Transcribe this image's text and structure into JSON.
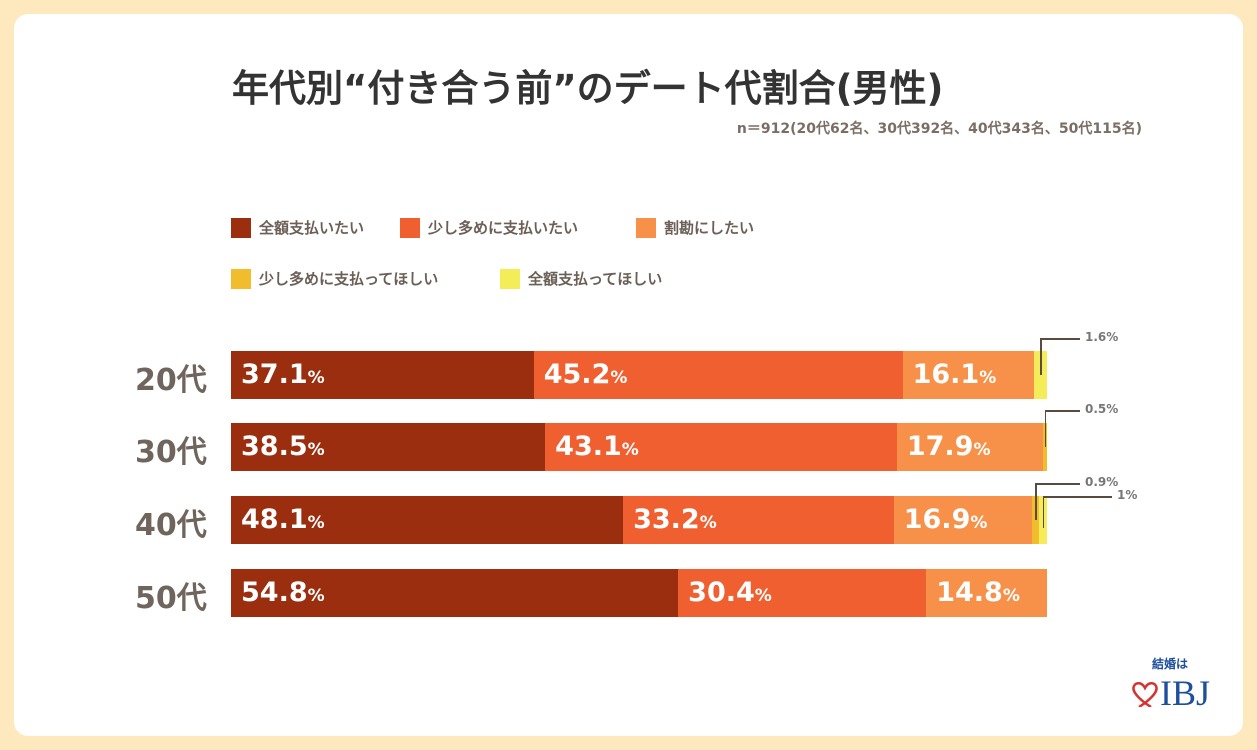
{
  "title": "年代別“付き合う前”のデート代割合(男性)",
  "subtitle": "n＝912(20代62名、30代392名、40代343名、50代115名)",
  "logo": {
    "tagline": "結婚は",
    "brand": "IBJ",
    "icon": "heart-icon"
  },
  "chart_data": {
    "type": "bar",
    "orientation": "horizontal",
    "stacked": true,
    "normalized": true,
    "title": "年代別“付き合う前”のデート代割合(男性)",
    "categories": [
      "20代",
      "30代",
      "40代",
      "50代"
    ],
    "legend_position": "top",
    "unit": "%",
    "series": [
      {
        "name": "全額支払いたい",
        "color": "#9a2e0e",
        "values": [
          37.1,
          38.5,
          48.1,
          54.8
        ]
      },
      {
        "name": "少し多めに支払いたい",
        "color": "#f05f30",
        "values": [
          45.2,
          43.1,
          33.2,
          30.4
        ]
      },
      {
        "name": "割勘にしたい",
        "color": "#f7914a",
        "values": [
          16.1,
          17.9,
          16.9,
          14.8
        ]
      },
      {
        "name": "少し多めに支払ってほしい",
        "color": "#f2bd2c",
        "values": [
          0,
          0.5,
          0.9,
          0
        ]
      },
      {
        "name": "全額支払ってほしい",
        "color": "#f5ec5a",
        "values": [
          1.6,
          0,
          1,
          0
        ]
      }
    ],
    "labels": [
      [
        "37.1",
        "45.2",
        "16.1",
        "",
        "1.6"
      ],
      [
        "38.5",
        "43.1",
        "17.9",
        "0.5",
        ""
      ],
      [
        "48.1",
        "33.2",
        "16.9",
        "0.9",
        "1"
      ],
      [
        "54.8",
        "30.4",
        "14.8",
        "",
        ""
      ]
    ]
  }
}
